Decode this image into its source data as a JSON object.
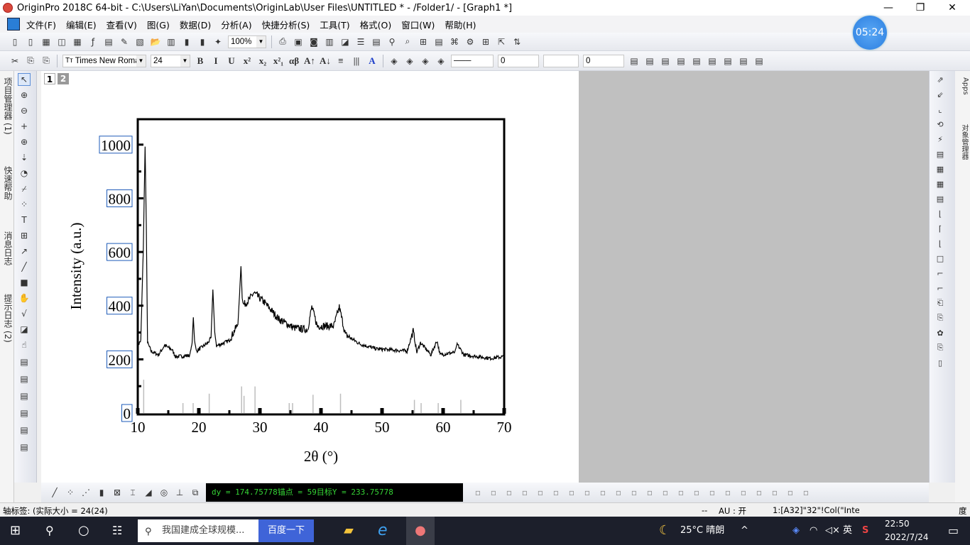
{
  "window": {
    "title": "OriginPro 2018C 64-bit - C:\\Users\\LiYan\\Documents\\OriginLab\\User Files\\UNTITLED * - /Folder1/ - [Graph1 *]",
    "min": "—",
    "restore": "❐",
    "close": "✕"
  },
  "menu": [
    "文件(F)",
    "编辑(E)",
    "查看(V)",
    "图(G)",
    "数据(D)",
    "分析(A)",
    "快捷分析(S)",
    "工具(T)",
    "格式(O)",
    "窗口(W)",
    "帮助(H)"
  ],
  "toolbar1": {
    "zoom": "100%",
    "icons_left": [
      "new-project",
      "new-folder",
      "new-workbook",
      "new-graph",
      "new-matrix",
      "new-function",
      "new-layout",
      "new-notes",
      "new-excel",
      "open",
      "open-template",
      "save",
      "save-template",
      "run"
    ],
    "icons_right": [
      "print",
      "slideshow",
      "refresh",
      "worksheet",
      "code-builder",
      "layer",
      "layer-tool",
      "hierarchy",
      "find",
      "import",
      "results-log",
      "command",
      "script",
      "add-layer",
      "rescale",
      "swap"
    ]
  },
  "toolbar2": {
    "font": "Times New Roma",
    "size": "24",
    "fmt": [
      "B",
      "I",
      "U",
      "x²",
      "x₂",
      "x²₁",
      "αβ",
      "A↑",
      "A↓",
      "≡",
      "|||",
      "A"
    ],
    "line_width": "0",
    "line_width2": "0"
  },
  "clock_bubble": "05:24",
  "left_dock": [
    "项目管理器 (1)",
    "快速帮助",
    "消息日志",
    "提示日志 (2)"
  ],
  "left_tools": [
    "pointer",
    "zoom-in",
    "zoom-out",
    "screen-reader",
    "data-reader",
    "data-selector",
    "region-of-interest",
    "mask",
    "draw-data",
    "text",
    "annotation",
    "arrow",
    "line",
    "rectangle",
    "hand",
    "insert-equation",
    "insert-graph",
    "pan"
  ],
  "right_dock": [
    "Apps",
    "对象管理器"
  ],
  "page_tabs": [
    "1",
    "2"
  ],
  "readout": "dy = 174.75778锚点 = 59目标Y = 233.75778",
  "status": {
    "left": "轴标签: (实际大小 = 24(24)",
    "dash": "--",
    "au": "AU : 开",
    "cell": "1:[A32]\"32\"!Col(\"Intensit",
    "unit": "度"
  },
  "taskbar": {
    "search_placeholder": "我国建成全球规模...",
    "search_button": "百度一下",
    "weather": "25°C 晴朗",
    "ime": "英",
    "time": "22:50",
    "date": "2022/7/24"
  },
  "colors": {
    "accent": "#3f64d8",
    "readout_text": "#35d435",
    "reference_lines": "#bdbdbd",
    "curve": "#000000"
  },
  "chart_data": {
    "type": "line",
    "xlabel": "2θ (°)",
    "ylabel": "Intensity (a.u.)",
    "xlim": [
      10,
      70
    ],
    "ylim": [
      0,
      1100
    ],
    "xticks": [
      "10",
      "20",
      "30",
      "40",
      "50",
      "60",
      "70"
    ],
    "yticks": [
      "0",
      "200",
      "400",
      "600",
      "800",
      "1000"
    ],
    "grid": false,
    "series": [
      {
        "x": [
          10,
          10.5,
          10.9,
          11.2,
          11.4,
          11.6,
          12.2,
          13.4,
          14.4,
          15.6,
          16.2,
          17.4,
          18.5,
          18.9,
          19.1,
          19.3,
          19.6,
          21.5,
          22.0,
          22.3,
          22.6,
          22.9,
          25,
          26.4,
          26.6,
          26.9,
          27.1,
          27.3,
          28.2,
          29,
          30.8,
          33.1,
          35.5,
          37.8,
          38.5,
          39.4,
          42.1,
          43,
          44,
          46.4,
          49.1,
          54.1,
          55.1,
          55.7,
          56.3,
          58,
          59,
          59.5,
          61.9,
          62.3,
          63.4,
          67.7,
          70
        ],
        "y": [
          252,
          270,
          600,
          995,
          700,
          262,
          230,
          217,
          252,
          236,
          210,
          212,
          215,
          260,
          358,
          270,
          230,
          262,
          280,
          462,
          300,
          250,
          270,
          332,
          411,
          549,
          430,
          403,
          420,
          448,
          411,
          350,
          318,
          310,
          395,
          324,
          324,
          395,
          292,
          257,
          239,
          231,
          305,
          226,
          262,
          217,
          270,
          217,
          226,
          257,
          217,
          204,
          210
        ]
      }
    ],
    "reference": {
      "x": [
        10.97,
        17.4,
        19.07,
        21.7,
        27.0,
        27.4,
        29.2,
        34.8,
        35.35,
        38.7,
        43.2,
        55.3,
        56.4,
        59.2,
        62.9
      ],
      "y": [
        124,
        37,
        37,
        72,
        99,
        64,
        99,
        37,
        37,
        68,
        72,
        49,
        37,
        37,
        49
      ]
    }
  }
}
